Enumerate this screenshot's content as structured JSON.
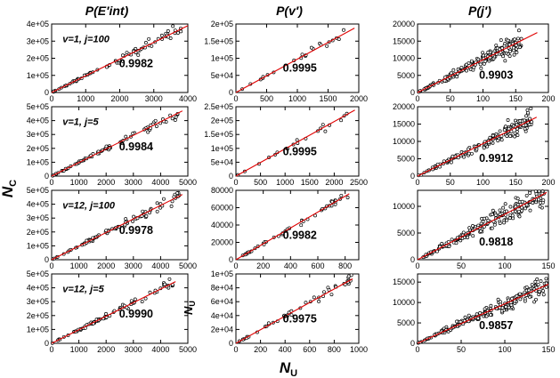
{
  "figure": {
    "column_titles": [
      "P(E′int)",
      "P(v′)",
      "P(j′)"
    ],
    "xlabel": "N",
    "xlabel_sub": "U",
    "ylabel": "N",
    "ylabel_sub": "C",
    "stray_label": "N",
    "stray_label_sub": "U"
  },
  "chart_data": [
    {
      "type": "scatter",
      "row": 0,
      "col": 0,
      "annotation": "v=1, j=100",
      "r": "0.9982",
      "xlim": [
        0,
        4000
      ],
      "ylim": [
        0,
        400000
      ],
      "xticks": [
        "0",
        "1000",
        "2000",
        "3000",
        "4000"
      ],
      "xtick_values": [
        0,
        1000,
        2000,
        3000,
        4000
      ],
      "yticks": [
        "0",
        "1e+05",
        "2e+05",
        "3e+05",
        "4e+05"
      ],
      "ytick_values": [
        0,
        100000,
        200000,
        300000,
        400000
      ],
      "fit": {
        "x": [
          0,
          4000
        ],
        "y": [
          0,
          390000
        ]
      },
      "n_points": 75,
      "x_max": 3950
    },
    {
      "type": "scatter",
      "row": 0,
      "col": 1,
      "annotation": "",
      "r": "0.9995",
      "xlim": [
        0,
        2000
      ],
      "ylim": [
        0,
        200000
      ],
      "xticks": [
        "0",
        "500",
        "1000",
        "1500",
        "2000"
      ],
      "xtick_values": [
        0,
        500,
        1000,
        1500,
        2000
      ],
      "yticks": [
        "0",
        "5e+04",
        "1e+05",
        "1.5e+05",
        "2e+05"
      ],
      "ytick_values": [
        0,
        50000,
        100000,
        150000,
        200000
      ],
      "fit": {
        "x": [
          0,
          1930
        ],
        "y": [
          0,
          188000
        ]
      },
      "n_points": 22,
      "x_max": 1900
    },
    {
      "type": "scatter",
      "row": 0,
      "col": 2,
      "annotation": "",
      "r": "0.9903",
      "xlim": [
        0,
        200
      ],
      "ylim": [
        0,
        20000
      ],
      "xticks": [
        "0",
        "50",
        "100",
        "150",
        "200"
      ],
      "xtick_values": [
        0,
        50,
        100,
        150,
        200
      ],
      "yticks": [
        "0",
        "5000",
        "10000",
        "15000",
        "20000"
      ],
      "ytick_values": [
        0,
        5000,
        10000,
        15000,
        20000
      ],
      "fit": {
        "x": [
          0,
          183
        ],
        "y": [
          0,
          17500
        ]
      },
      "n_points": 180,
      "x_max": 160
    },
    {
      "type": "scatter",
      "row": 1,
      "col": 0,
      "annotation": "v=1, j=5",
      "r": "0.9984",
      "xlim": [
        0,
        5000
      ],
      "ylim": [
        0,
        500000
      ],
      "xticks": [
        "0",
        "1000",
        "2000",
        "3000",
        "4000",
        "5000"
      ],
      "xtick_values": [
        0,
        1000,
        2000,
        3000,
        4000,
        5000
      ],
      "yticks": [
        "0",
        "1e+05",
        "2e+05",
        "3e+05",
        "4e+05",
        "5e+05"
      ],
      "ytick_values": [
        0,
        100000,
        200000,
        300000,
        400000,
        500000
      ],
      "fit": {
        "x": [
          0,
          4800
        ],
        "y": [
          0,
          470000
        ]
      },
      "n_points": 75,
      "x_max": 4750
    },
    {
      "type": "scatter",
      "row": 1,
      "col": 1,
      "annotation": "",
      "r": "0.9995",
      "xlim": [
        0,
        2500
      ],
      "ylim": [
        0,
        250000
      ],
      "xticks": [
        "0",
        "500",
        "1000",
        "1500",
        "2000",
        "2500"
      ],
      "xtick_values": [
        0,
        500,
        1000,
        1500,
        2000,
        2500
      ],
      "yticks": [
        "0",
        "5e+04",
        "1e+05",
        "1.5e+05",
        "2e+05",
        "2.5e+05"
      ],
      "ytick_values": [
        0,
        50000,
        100000,
        150000,
        200000,
        250000
      ],
      "fit": {
        "x": [
          0,
          2420
        ],
        "y": [
          0,
          238000
        ]
      },
      "n_points": 20,
      "x_max": 2350
    },
    {
      "type": "scatter",
      "row": 1,
      "col": 2,
      "annotation": "",
      "r": "0.9912",
      "xlim": [
        0,
        200
      ],
      "ylim": [
        0,
        20000
      ],
      "xticks": [
        "0",
        "50",
        "100",
        "150",
        "200"
      ],
      "xtick_values": [
        0,
        50,
        100,
        150,
        200
      ],
      "yticks": [
        "0",
        "5000",
        "10000",
        "15000",
        "20000"
      ],
      "ytick_values": [
        0,
        5000,
        10000,
        15000,
        20000
      ],
      "fit": {
        "x": [
          0,
          182
        ],
        "y": [
          0,
          17000
        ]
      },
      "n_points": 160,
      "x_max": 175
    },
    {
      "type": "scatter",
      "row": 2,
      "col": 0,
      "annotation": "v=12, j=100",
      "r": "0.9978",
      "xlim": [
        0,
        5000
      ],
      "ylim": [
        0,
        500000
      ],
      "xticks": [
        "0",
        "1000",
        "2000",
        "3000",
        "4000",
        "5000"
      ],
      "xtick_values": [
        0,
        1000,
        2000,
        3000,
        4000,
        5000
      ],
      "yticks": [
        "0",
        "1e+05",
        "2e+05",
        "3e+05",
        "4e+05",
        "5e+05"
      ],
      "ytick_values": [
        0,
        100000,
        200000,
        300000,
        400000,
        500000
      ],
      "fit": {
        "x": [
          0,
          4800
        ],
        "y": [
          0,
          470000
        ]
      },
      "n_points": 80,
      "x_max": 4700
    },
    {
      "type": "scatter",
      "row": 2,
      "col": 1,
      "annotation": "",
      "r": "0.9982",
      "xlim": [
        0,
        900
      ],
      "ylim": [
        0,
        80000
      ],
      "xticks": [
        "0",
        "200",
        "400",
        "600",
        "800"
      ],
      "xtick_values": [
        0,
        200,
        400,
        600,
        800
      ],
      "yticks": [
        "0",
        "20000",
        "40000",
        "60000",
        "80000"
      ],
      "ytick_values": [
        0,
        20000,
        40000,
        60000,
        80000
      ],
      "fit": {
        "x": [
          0,
          830
        ],
        "y": [
          0,
          76000
        ]
      },
      "n_points": 45,
      "x_max": 820
    },
    {
      "type": "scatter",
      "row": 2,
      "col": 2,
      "annotation": "",
      "r": "0.9818",
      "xlim": [
        0,
        150
      ],
      "ylim": [
        0,
        13000
      ],
      "xticks": [
        "0",
        "50",
        "100",
        "150"
      ],
      "xtick_values": [
        0,
        50,
        100,
        150
      ],
      "yticks": [
        "0",
        "5000",
        "10000"
      ],
      "ytick_values": [
        0,
        5000,
        10000
      ],
      "fit": {
        "x": [
          0,
          148
        ],
        "y": [
          0,
          12600
        ]
      },
      "n_points": 200,
      "x_max": 145
    },
    {
      "type": "scatter",
      "row": 3,
      "col": 0,
      "annotation": "v=12, j=5",
      "r": "0.9990",
      "xlim": [
        0,
        5000
      ],
      "ylim": [
        0,
        500000
      ],
      "xticks": [
        "0",
        "1000",
        "2000",
        "3000",
        "4000",
        "5000"
      ],
      "xtick_values": [
        0,
        1000,
        2000,
        3000,
        4000,
        5000
      ],
      "yticks": [
        "0",
        "1e+05",
        "2e+05",
        "3e+05",
        "4e+05",
        "5e+05"
      ],
      "ytick_values": [
        0,
        100000,
        200000,
        300000,
        400000,
        500000
      ],
      "fit": {
        "x": [
          0,
          4550
        ],
        "y": [
          0,
          445000
        ]
      },
      "n_points": 80,
      "x_max": 4450
    },
    {
      "type": "scatter",
      "row": 3,
      "col": 1,
      "annotation": "",
      "r": "0.9975",
      "xlim": [
        0,
        1000
      ],
      "ylim": [
        0,
        100000
      ],
      "xticks": [
        "0",
        "200",
        "400",
        "600",
        "800",
        "1000"
      ],
      "xtick_values": [
        0,
        200,
        400,
        600,
        800,
        1000
      ],
      "yticks": [
        "0",
        "2e+04",
        "4e+04",
        "6e+04",
        "8e+04",
        "1e+05"
      ],
      "ytick_values": [
        0,
        20000,
        40000,
        60000,
        80000,
        100000
      ],
      "fit": {
        "x": [
          0,
          950
        ],
        "y": [
          0,
          93000
        ]
      },
      "n_points": 45,
      "x_max": 940
    },
    {
      "type": "scatter",
      "row": 3,
      "col": 2,
      "annotation": "",
      "r": "0.9857",
      "xlim": [
        0,
        150
      ],
      "ylim": [
        0,
        17000
      ],
      "xticks": [
        "0",
        "50",
        "100",
        "150"
      ],
      "xtick_values": [
        0,
        50,
        100,
        150
      ],
      "yticks": [
        "0",
        "5000",
        "10000",
        "15000"
      ],
      "ytick_values": [
        0,
        5000,
        10000,
        15000
      ],
      "fit": {
        "x": [
          0,
          150
        ],
        "y": [
          0,
          14500
        ]
      },
      "n_points": 200,
      "x_max": 148
    }
  ]
}
